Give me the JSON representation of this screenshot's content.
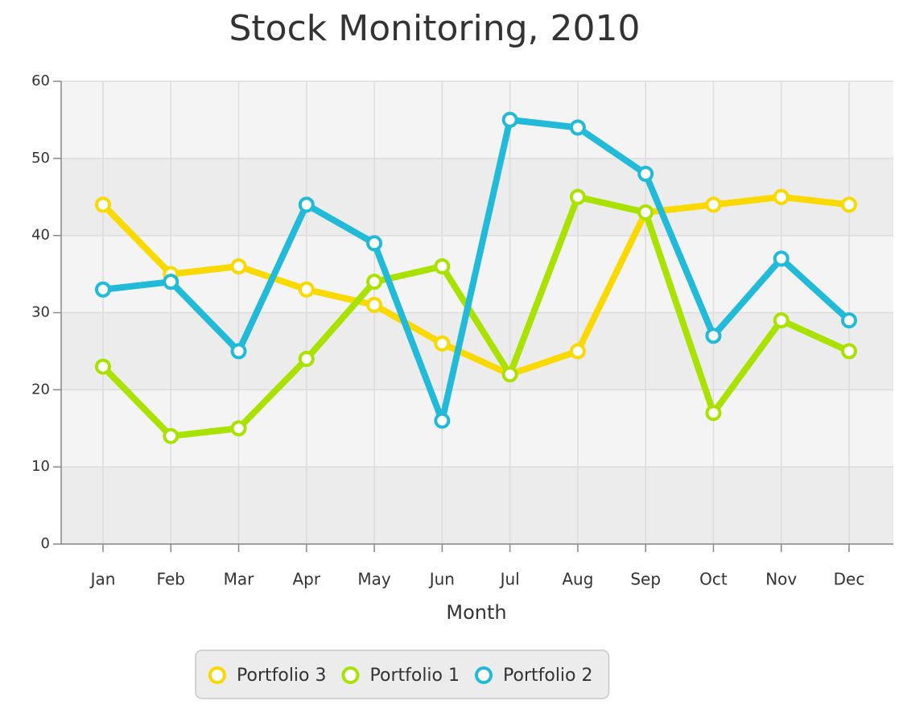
{
  "chart_data": {
    "type": "line",
    "title": "Stock Monitoring, 2010",
    "x_label": "Month",
    "categories": [
      "Jan",
      "Feb",
      "Mar",
      "Apr",
      "May",
      "Jun",
      "Jul",
      "Aug",
      "Sep",
      "Oct",
      "Nov",
      "Dec"
    ],
    "series": [
      {
        "name": "Portfolio 3",
        "color": "#f9d900",
        "values": [
          44,
          35,
          36,
          33,
          31,
          26,
          22,
          25,
          43,
          44,
          45,
          44
        ]
      },
      {
        "name": "Portfolio 1",
        "color": "#a9e200",
        "values": [
          23,
          14,
          15,
          24,
          34,
          36,
          22,
          45,
          43,
          17,
          29,
          25
        ]
      },
      {
        "name": "Portfolio 2",
        "color": "#22bad9",
        "values": [
          33,
          34,
          25,
          44,
          39,
          16,
          55,
          54,
          48,
          27,
          37,
          29
        ]
      }
    ],
    "ylim": [
      0,
      60
    ],
    "yticks": [
      0,
      10,
      20,
      30,
      40,
      50,
      60
    ],
    "grid": true,
    "legend": "bottom"
  }
}
